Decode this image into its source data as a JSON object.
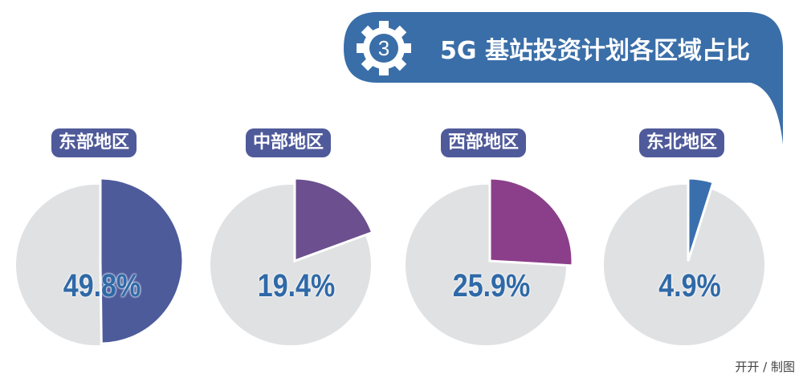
{
  "title": "5G 基站投资计划各区域占比",
  "badge_number": "3",
  "credit": "开开 / 制图",
  "colors": {
    "banner": "#3a6ea8",
    "pill": "#4f5a9a",
    "rest": "#e0e1e3",
    "percent_text": "#2f69a7"
  },
  "chart_data": {
    "type": "pie",
    "title": "5G 基站投资计划各区域占比",
    "charts": [
      {
        "category": "东部地区",
        "value": 49.8,
        "label": "49.8%",
        "color": "#4d5b9b"
      },
      {
        "category": "中部地区",
        "value": 19.4,
        "label": "19.4%",
        "color": "#6b4f8e"
      },
      {
        "category": "西部地区",
        "value": 25.9,
        "label": "25.9%",
        "color": "#8b3f8a"
      },
      {
        "category": "东北地区",
        "value": 4.9,
        "label": "4.9%",
        "color": "#3a6fae"
      }
    ]
  }
}
